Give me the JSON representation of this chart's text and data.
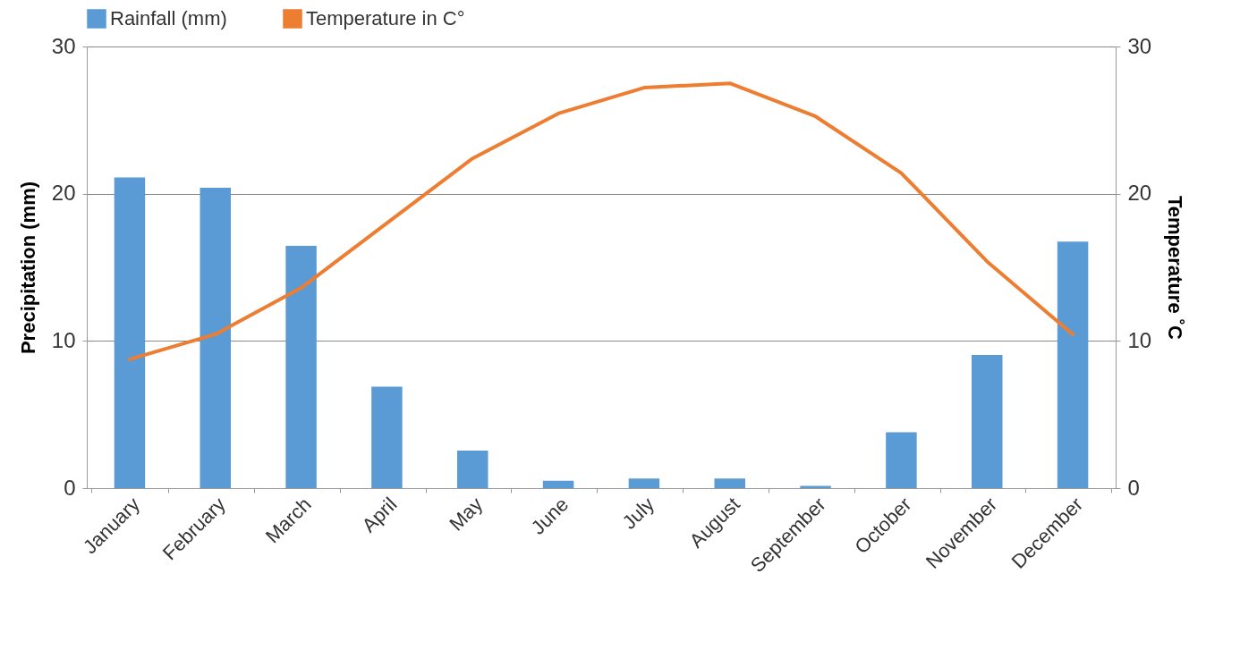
{
  "chart_data": {
    "type": "bar",
    "categories": [
      "January",
      "February",
      "March",
      "April",
      "May",
      "June",
      "July",
      "August",
      "September",
      "October",
      "November",
      "December"
    ],
    "series": [
      {
        "name": "Rainfall (mm)",
        "color": "#5b9bd5",
        "values": [
          21.1,
          20.4,
          16.45,
          6.9,
          2.55,
          0.5,
          0.65,
          0.65,
          0.15,
          3.8,
          9.05,
          16.75
        ]
      },
      {
        "name": "Temperature in C°",
        "type": "line",
        "axis": "y2",
        "color": "#ed7d31",
        "values": [
          8.75,
          10.45,
          13.6,
          18.0,
          22.4,
          25.45,
          27.2,
          27.5,
          25.25,
          21.4,
          15.4,
          10.45
        ]
      }
    ],
    "ylabel": "Precipitation (mm)",
    "y2label": "Temperature ˚C",
    "ylim": [
      0,
      30
    ],
    "yticks": [
      0,
      10,
      20,
      30
    ],
    "y2lim": [
      0,
      30
    ],
    "y2ticks": [
      0,
      10,
      20,
      30
    ],
    "grid": "y",
    "legend": "top"
  }
}
